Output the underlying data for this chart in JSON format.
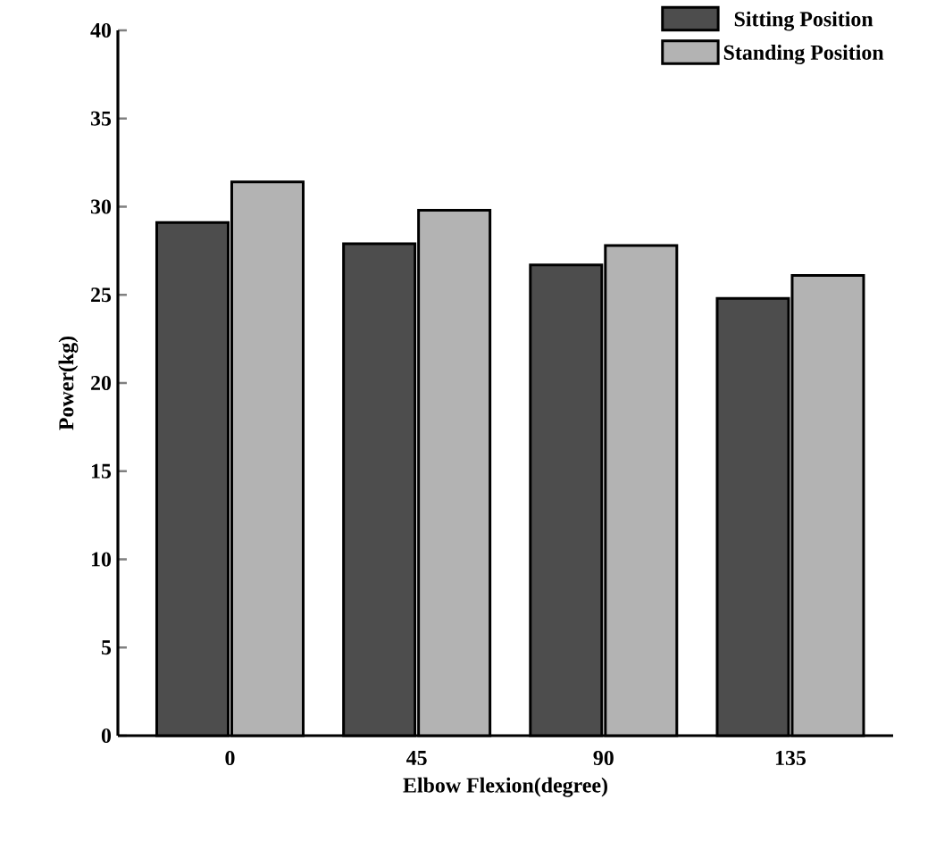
{
  "chart_data": {
    "type": "bar",
    "xlabel": "Elbow Flexion(degree)",
    "ylabel": "Power(kg)",
    "categories": [
      "0",
      "45",
      "90",
      "135"
    ],
    "series": [
      {
        "name": "Sitting Position",
        "color": "#4d4d4d",
        "values": [
          29.1,
          27.9,
          26.7,
          24.8
        ]
      },
      {
        "name": "Standing Position",
        "color": "#b3b3b3",
        "values": [
          31.4,
          29.8,
          27.8,
          26.1
        ]
      }
    ],
    "ylim": [
      0,
      40
    ],
    "yticks": [
      0,
      5,
      10,
      15,
      20,
      25,
      30,
      35,
      40
    ],
    "legend": "top right",
    "grid": false
  }
}
